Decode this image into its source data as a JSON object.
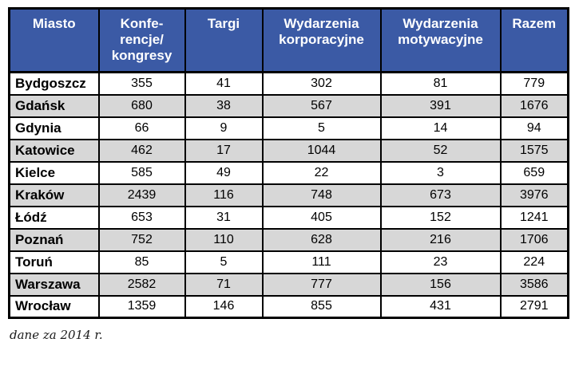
{
  "chart_data": {
    "type": "table",
    "title": "",
    "columns": [
      "Miasto",
      "Konfe-\nrencje/\nkongresy",
      "Targi",
      "Wydarzenia\nkorporacyjne",
      "Wydarzenia\nmotywacyjne",
      "Razem"
    ],
    "rows": [
      {
        "city": "Bydgoszcz",
        "values": [
          355,
          41,
          302,
          81,
          779
        ]
      },
      {
        "city": "Gdańsk",
        "values": [
          680,
          38,
          567,
          391,
          1676
        ]
      },
      {
        "city": "Gdynia",
        "values": [
          66,
          9,
          5,
          14,
          94
        ]
      },
      {
        "city": "Katowice",
        "values": [
          462,
          17,
          1044,
          52,
          1575
        ]
      },
      {
        "city": "Kielce",
        "values": [
          585,
          49,
          22,
          3,
          659
        ]
      },
      {
        "city": "Kraków",
        "values": [
          2439,
          116,
          748,
          673,
          3976
        ]
      },
      {
        "city": "Łódź",
        "values": [
          653,
          31,
          405,
          152,
          1241
        ]
      },
      {
        "city": "Poznań",
        "values": [
          752,
          110,
          628,
          216,
          1706
        ]
      },
      {
        "city": "Toruń",
        "values": [
          85,
          5,
          111,
          23,
          224
        ]
      },
      {
        "city": "Warszawa",
        "values": [
          2582,
          71,
          777,
          156,
          3586
        ]
      },
      {
        "city": "Wrocław",
        "values": [
          1359,
          146,
          855,
          431,
          2791
        ]
      }
    ],
    "footnote": "dane za 2014 r."
  },
  "colors": {
    "header_bg": "#3b5aa5",
    "header_text": "#ffffff",
    "alt_row_bg": "#d7d7d7",
    "border": "#000000"
  }
}
